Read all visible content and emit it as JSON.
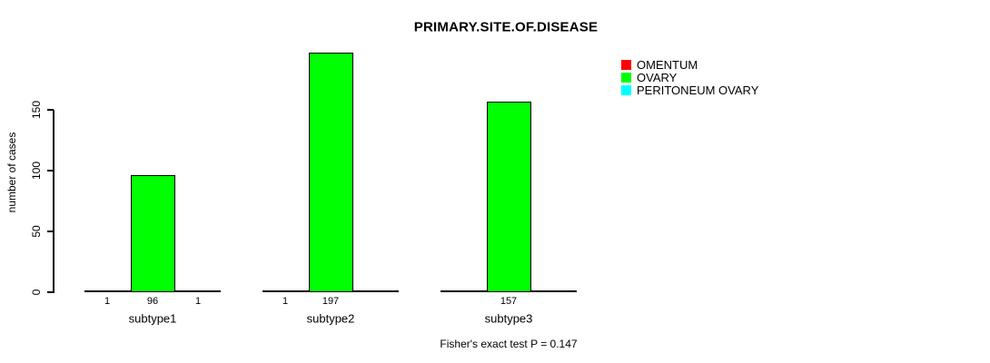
{
  "title": "PRIMARY.SITE.OF.DISEASE",
  "caption": "Fisher's exact test P = 0.147",
  "chart_data": {
    "type": "bar",
    "title": "PRIMARY.SITE.OF.DISEASE",
    "xlabel": "",
    "ylabel": "number of cases",
    "categories": [
      "subtype1",
      "subtype2",
      "subtype3"
    ],
    "series": [
      {
        "name": "OMENTUM",
        "color": "#ff0000",
        "values": [
          1,
          1,
          0
        ]
      },
      {
        "name": "OVARY",
        "color": "#00ff00",
        "values": [
          96,
          197,
          157
        ]
      },
      {
        "name": "PERITONEUM OVARY",
        "color": "#00ffff",
        "values": [
          1,
          0,
          0
        ]
      }
    ],
    "bar_value_labels_shown_for_nonzero": true,
    "yticks": [
      0,
      50,
      100,
      150
    ],
    "ylim": [
      0,
      197
    ],
    "grid": false,
    "legend_position": "right-outside",
    "annotation": "Fisher's exact test P = 0.147",
    "colors": {
      "background": "#ffffff",
      "axis": "#000000",
      "text": "#000000"
    }
  }
}
